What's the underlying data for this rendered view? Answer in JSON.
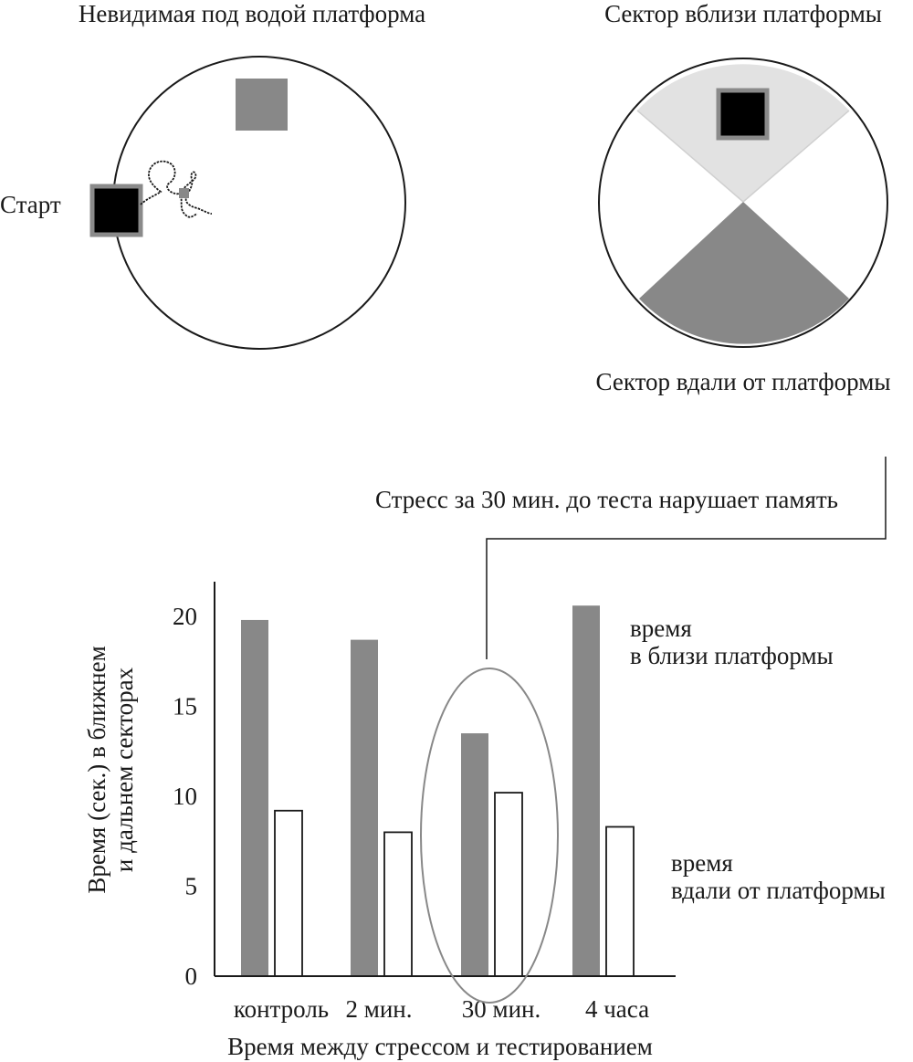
{
  "top_left": {
    "title": "Невидимая под водой платформа",
    "start_label": "Старт"
  },
  "top_right": {
    "title": "Сектор вблизи платформы",
    "bottom_label": "Сектор вдали от платформы"
  },
  "annotation": "Стресс за 30 мин. до теста нарушает память",
  "colors": {
    "near": "#888888",
    "far": "#ffffff",
    "near_sector": "#e2e2e2",
    "platform": "#000000",
    "platform_border": "#8a8a8a",
    "outline": "#1a1a1a"
  },
  "chart_data": {
    "type": "bar",
    "title": "",
    "xlabel": "Время между стрессом и тестированием",
    "ylabel_lines": [
      "Время (сек.) в ближнем",
      "и дальнем секторах"
    ],
    "categories": [
      "контроль",
      "2 мин.",
      "30 мин.",
      "4 часа"
    ],
    "series": [
      {
        "name_lines": [
          "время",
          "в близи платформы"
        ],
        "values": [
          19.8,
          18.7,
          13.5,
          20.6
        ]
      },
      {
        "name_lines": [
          "время",
          "вдали от платформы"
        ],
        "values": [
          9.2,
          8.0,
          10.2,
          8.3
        ]
      }
    ],
    "yticks": [
      0,
      5,
      10,
      15,
      20
    ],
    "ylim": [
      0,
      21
    ],
    "highlighted_category": "30 мин.",
    "legend": "right",
    "grid": false
  }
}
